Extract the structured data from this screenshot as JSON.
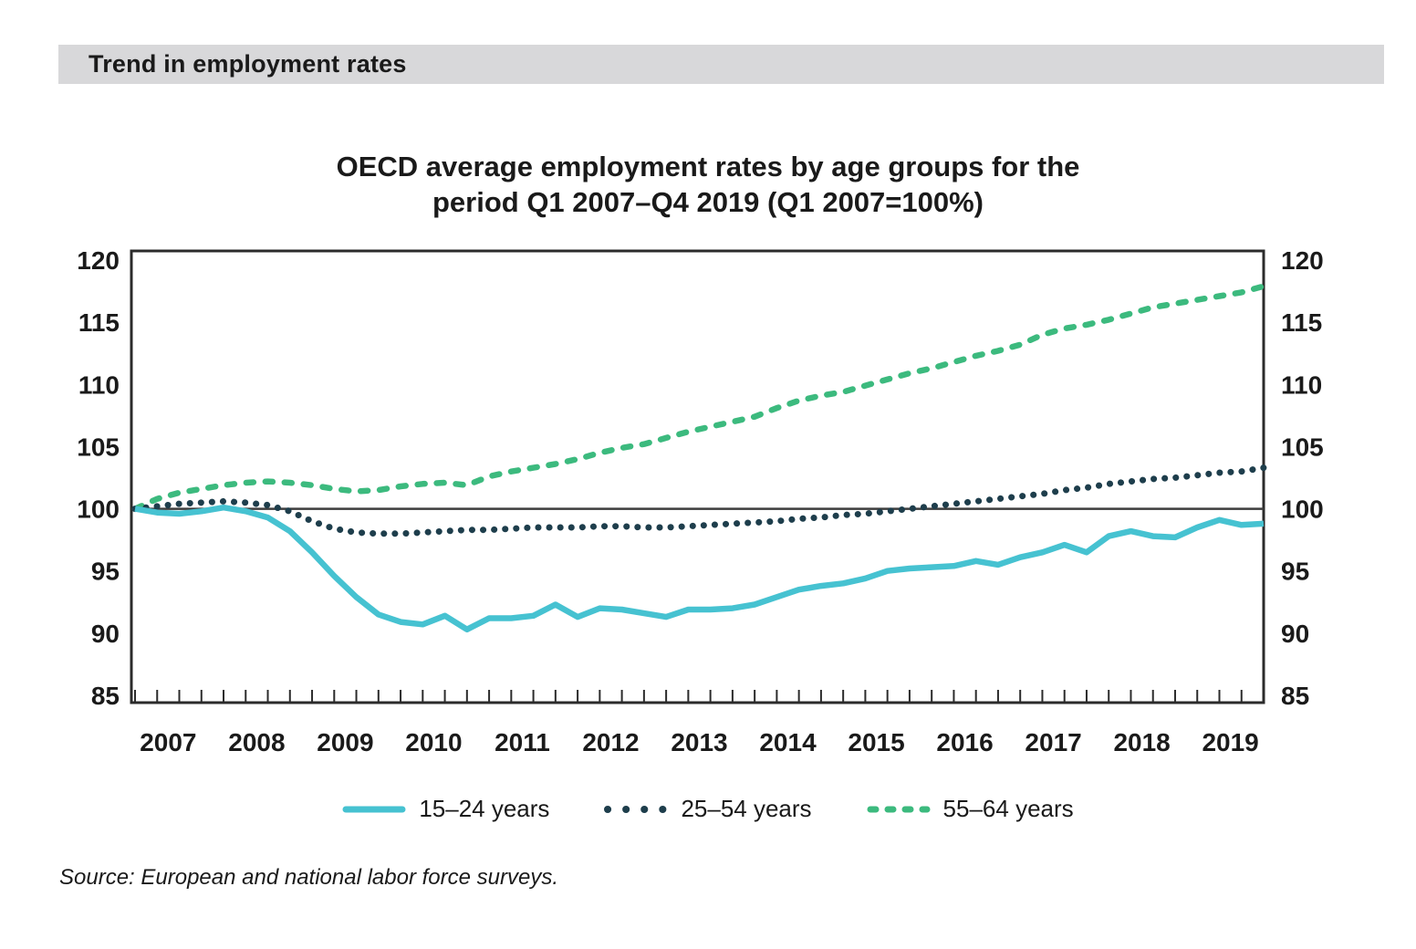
{
  "header": {
    "title": "Trend in employment rates"
  },
  "title": {
    "line1": "OECD average employment rates by age groups for the",
    "line2": "period Q1 2007–Q4 2019 (Q1 2007=100%)"
  },
  "source": {
    "text": "Source: European and national labor force surveys."
  },
  "colors": {
    "header_bar": "#d8d8da",
    "text": "#1a1a1a",
    "axis": "#2b2b2b",
    "baseline": "#3d3d3d"
  },
  "chart_data": {
    "type": "line",
    "title": "OECD average employment rates by age groups for the period Q1 2007–Q4 2019 (Q1 2007=100%)",
    "x_unit": "quarter",
    "x_start": "Q1 2007",
    "x_end": "Q4 2019",
    "years": [
      "2007",
      "2008",
      "2009",
      "2010",
      "2011",
      "2012",
      "2013",
      "2014",
      "2015",
      "2016",
      "2017",
      "2018",
      "2019"
    ],
    "quarters_per_year": 4,
    "y_ticks": [
      120,
      115,
      110,
      105,
      100,
      95,
      90,
      85
    ],
    "ylim": [
      85,
      120
    ],
    "baseline_value": 100,
    "grid": "off",
    "legend_position": "bottom",
    "series": [
      {
        "name": "15-24 years",
        "label": "15–24 years",
        "color": "#46C2D1",
        "style": "solid",
        "values": [
          100.0,
          99.7,
          99.6,
          99.8,
          100.1,
          99.8,
          99.3,
          98.2,
          96.5,
          94.6,
          92.9,
          91.5,
          90.9,
          90.7,
          91.4,
          90.3,
          91.2,
          91.2,
          91.4,
          92.3,
          91.3,
          92.0,
          91.9,
          91.6,
          91.3,
          91.9,
          91.9,
          92.0,
          92.3,
          92.9,
          93.5,
          93.8,
          94.0,
          94.4,
          95.0,
          95.2,
          95.3,
          95.4,
          95.8,
          95.5,
          96.1,
          96.5,
          97.1,
          96.5,
          97.8,
          98.2,
          97.8,
          97.7,
          98.5,
          99.1,
          98.7,
          98.8
        ]
      },
      {
        "name": "25-54 years",
        "label": "25–54 years",
        "color": "#1E3E4C",
        "style": "dotted",
        "values": [
          100.0,
          100.2,
          100.4,
          100.5,
          100.6,
          100.5,
          100.3,
          99.8,
          99.0,
          98.4,
          98.1,
          98.0,
          98.0,
          98.1,
          98.2,
          98.3,
          98.3,
          98.4,
          98.5,
          98.5,
          98.5,
          98.6,
          98.6,
          98.5,
          98.5,
          98.6,
          98.7,
          98.8,
          98.9,
          99.0,
          99.2,
          99.3,
          99.5,
          99.6,
          99.8,
          100.0,
          100.2,
          100.4,
          100.6,
          100.8,
          101.0,
          101.2,
          101.5,
          101.7,
          102.0,
          102.2,
          102.4,
          102.5,
          102.7,
          102.9,
          103.0,
          103.3
        ]
      },
      {
        "name": "55-64 years",
        "label": "55–64 years",
        "color": "#3CBA7E",
        "style": "dashed",
        "values": [
          100.0,
          100.8,
          101.3,
          101.6,
          101.9,
          102.1,
          102.2,
          102.1,
          101.9,
          101.6,
          101.4,
          101.5,
          101.8,
          102.0,
          102.1,
          101.9,
          102.6,
          103.0,
          103.3,
          103.6,
          104.0,
          104.5,
          104.9,
          105.2,
          105.7,
          106.2,
          106.6,
          107.0,
          107.4,
          108.1,
          108.7,
          109.1,
          109.4,
          109.9,
          110.4,
          110.9,
          111.3,
          111.8,
          112.3,
          112.7,
          113.2,
          114.0,
          114.5,
          114.8,
          115.2,
          115.7,
          116.2,
          116.5,
          116.8,
          117.1,
          117.4,
          117.9
        ]
      }
    ]
  }
}
